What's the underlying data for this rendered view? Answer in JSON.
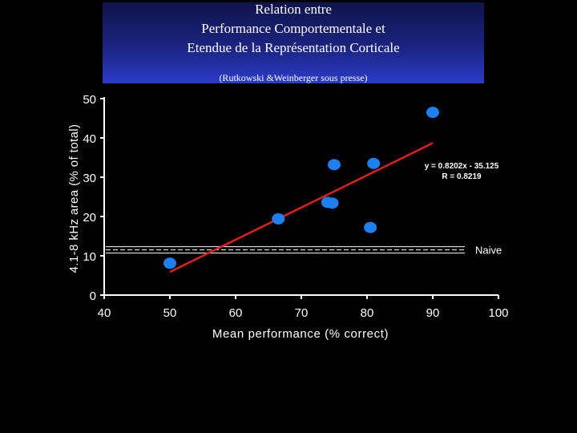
{
  "title": {
    "line1": "Relation entre",
    "line2": "Performance Comportementale et",
    "line3": "Etendue de la Représentation Corticale",
    "subtitle": "(Rutkowski &Weinberger sous presse)"
  },
  "colors": {
    "background": "#000000",
    "point": "#1e7ff0",
    "fit_line": "#e02020",
    "naive_line": "#ffffff"
  },
  "chart_data": {
    "type": "scatter",
    "xlabel": "Mean performance (% correct)",
    "ylabel": "4.1-8 kHz area (% of total)",
    "xlim": [
      40,
      100
    ],
    "ylim": [
      0,
      50
    ],
    "xticks": [
      40,
      50,
      60,
      70,
      80,
      90,
      100
    ],
    "yticks": [
      0,
      10,
      20,
      30,
      40,
      50
    ],
    "grid": false,
    "points": [
      {
        "x": 50,
        "y": 8.1
      },
      {
        "x": 66.5,
        "y": 19.4
      },
      {
        "x": 74,
        "y": 23.6
      },
      {
        "x": 74.7,
        "y": 23.4
      },
      {
        "x": 75,
        "y": 33.2
      },
      {
        "x": 80.5,
        "y": 17.2
      },
      {
        "x": 81,
        "y": 33.5
      },
      {
        "x": 90,
        "y": 46.5
      }
    ],
    "fit": {
      "slope": 0.8202,
      "intercept": -35.125,
      "x_range": [
        50,
        90
      ]
    },
    "equation_text": "y = 0.8202x - 35.125",
    "r_text": "R = 0.8219",
    "naive": {
      "label": "Naive",
      "y": 11.5
    }
  }
}
